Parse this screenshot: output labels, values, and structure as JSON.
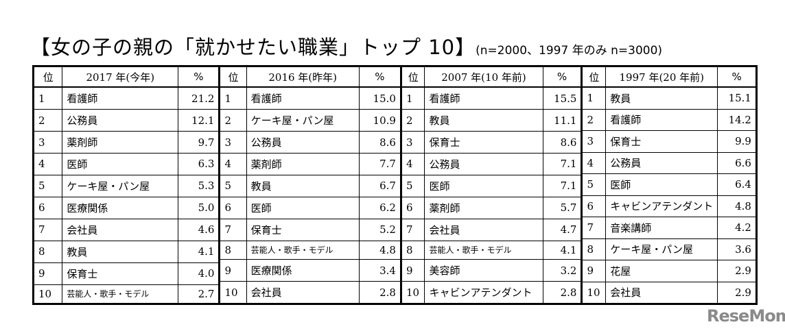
{
  "title": "【女の子の親の「就かせたい職業」トップ 10】",
  "subtitle": "(n=2000、1997 年のみ n=3000)",
  "rank_header": "位",
  "pct_header": "%",
  "groups": [
    {
      "header": "2017 年(今年)",
      "rows": [
        {
          "rank": "1",
          "job": "看護師",
          "pct": "21.2"
        },
        {
          "rank": "2",
          "job": "公務員",
          "pct": "12.1"
        },
        {
          "rank": "3",
          "job": "薬剤師",
          "pct": "9.7"
        },
        {
          "rank": "4",
          "job": "医師",
          "pct": "6.3"
        },
        {
          "rank": "5",
          "job": "ケーキ屋・パン屋",
          "pct": "5.3"
        },
        {
          "rank": "6",
          "job": "医療関係",
          "pct": "5.0"
        },
        {
          "rank": "7",
          "job": "会社員",
          "pct": "4.6"
        },
        {
          "rank": "8",
          "job": "教員",
          "pct": "4.1"
        },
        {
          "rank": "9",
          "job": "保育士",
          "pct": "4.0"
        },
        {
          "rank": "10",
          "job": "芸能人・歌手・モデル",
          "pct": "2.7"
        }
      ]
    },
    {
      "header": "2016 年(昨年)",
      "rows": [
        {
          "rank": "1",
          "job": "看護師",
          "pct": "15.0"
        },
        {
          "rank": "2",
          "job": "ケーキ屋・パン屋",
          "pct": "10.9"
        },
        {
          "rank": "3",
          "job": "公務員",
          "pct": "8.6"
        },
        {
          "rank": "4",
          "job": "薬剤師",
          "pct": "7.7"
        },
        {
          "rank": "5",
          "job": "教員",
          "pct": "6.7"
        },
        {
          "rank": "6",
          "job": "医師",
          "pct": "6.2"
        },
        {
          "rank": "7",
          "job": "保育士",
          "pct": "5.2"
        },
        {
          "rank": "8",
          "job": "芸能人・歌手・モデル",
          "pct": "4.8"
        },
        {
          "rank": "9",
          "job": "医療関係",
          "pct": "3.4"
        },
        {
          "rank": "10",
          "job": "会社員",
          "pct": "2.8"
        }
      ]
    },
    {
      "header": "2007 年(10 年前)",
      "rows": [
        {
          "rank": "1",
          "job": "看護師",
          "pct": "15.5"
        },
        {
          "rank": "2",
          "job": "教員",
          "pct": "11.1"
        },
        {
          "rank": "3",
          "job": "保育士",
          "pct": "8.6"
        },
        {
          "rank": "4",
          "job": "公務員",
          "pct": "7.1"
        },
        {
          "rank": "5",
          "job": "医師",
          "pct": "7.1"
        },
        {
          "rank": "6",
          "job": "薬剤師",
          "pct": "5.7"
        },
        {
          "rank": "7",
          "job": "会社員",
          "pct": "4.7"
        },
        {
          "rank": "8",
          "job": "芸能人・歌手・モデル",
          "pct": "4.1"
        },
        {
          "rank": "9",
          "job": "美容師",
          "pct": "3.2"
        },
        {
          "rank": "10",
          "job": "キャビンアテンダント",
          "pct": "2.8"
        }
      ]
    },
    {
      "header": "1997 年(20 年前)",
      "rows": [
        {
          "rank": "1",
          "job": "教員",
          "pct": "15.1"
        },
        {
          "rank": "2",
          "job": "看護師",
          "pct": "14.2"
        },
        {
          "rank": "3",
          "job": "保育士",
          "pct": "9.9"
        },
        {
          "rank": "4",
          "job": "公務員",
          "pct": "6.6"
        },
        {
          "rank": "5",
          "job": "医師",
          "pct": "6.4"
        },
        {
          "rank": "6",
          "job": "キャビンアテンダント",
          "pct": "4.8"
        },
        {
          "rank": "7",
          "job": "音楽講師",
          "pct": "4.2"
        },
        {
          "rank": "8",
          "job": "ケーキ屋・パン屋",
          "pct": "3.6"
        },
        {
          "rank": "9",
          "job": "花屋",
          "pct": "2.9"
        },
        {
          "rank": "10",
          "job": "会社員",
          "pct": "2.9"
        }
      ]
    }
  ],
  "logo": "ReseMom"
}
